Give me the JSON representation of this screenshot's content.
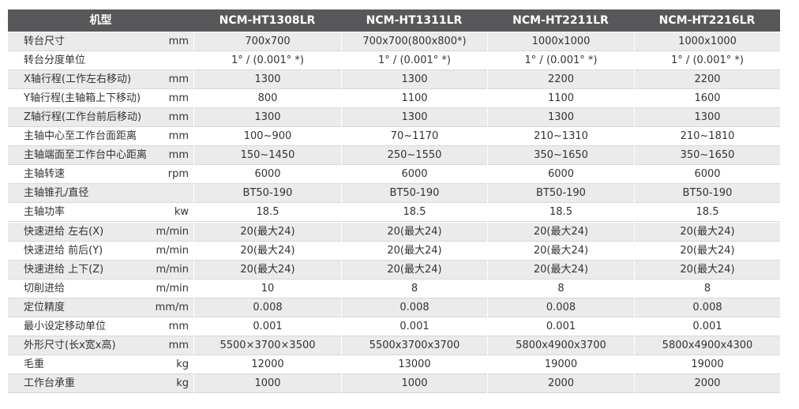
{
  "table": {
    "header": {
      "label": "机型",
      "models": [
        "NCM-HT1308LR",
        "NCM-HT1311LR",
        "NCM-HT2211LR",
        "NCM-HT2216LR"
      ]
    },
    "rows": [
      {
        "label": "转台尺寸",
        "unit": "mm",
        "values": [
          "700x700",
          "700x700(800x800*)",
          "1000x1000",
          "1000x1000"
        ]
      },
      {
        "label": "转台分度单位",
        "values": [
          "1° / (0.001° *)",
          "1° / (0.001° *)",
          "1° / (0.001° *)",
          "1° / (0.001° *)"
        ]
      },
      {
        "label": "X轴行程(工作左右移动)",
        "unit": "mm",
        "values": [
          "1300",
          "1300",
          "2200",
          "2200"
        ]
      },
      {
        "label": "Y轴行程(主轴箱上下移动)",
        "unit": "mm",
        "values": [
          "800",
          "1100",
          "1100",
          "1600"
        ]
      },
      {
        "label": "Z轴行程(工作台前后移动)",
        "unit": "mm",
        "values": [
          "1300",
          "1300",
          "1300",
          "1300"
        ]
      },
      {
        "label": "主轴中心至工作台面距离",
        "unit": "mm",
        "values": [
          "100~900",
          "70~1170",
          "210~1310",
          "210~1810"
        ]
      },
      {
        "label": "主轴端面至工作台中心距离",
        "unit": "mm",
        "values": [
          "150~1450",
          "250~1550",
          "350~1650",
          "350~1650"
        ]
      },
      {
        "label": "主轴转速",
        "unit": "rpm",
        "values": [
          "6000",
          "6000",
          "6000",
          "6000"
        ]
      },
      {
        "label": "主轴锥孔/直径",
        "values": [
          "BT50-190",
          "BT50-190",
          "BT50-190",
          "BT50-190"
        ]
      },
      {
        "label": "主轴功率",
        "unit": "kw",
        "values": [
          "18.5",
          "18.5",
          "18.5",
          "18.5"
        ]
      },
      {
        "label": "快速进给 左右(X)",
        "unit": "m/min",
        "values": [
          "20(最大24)",
          "20(最大24)",
          "20(最大24)",
          "20(最大24)"
        ]
      },
      {
        "label": "快速进给 前后(Y)",
        "unit": "m/min",
        "values": [
          "20(最大24)",
          "20(最大24)",
          "20(最大24)",
          "20(最大24)"
        ]
      },
      {
        "label": "快速进给 上下(Z)",
        "unit": "m/min",
        "values": [
          "20(最大24)",
          "20(最大24)",
          "20(最大24)",
          "20(最大24)"
        ]
      },
      {
        "label": "切削进给",
        "unit": "m/min",
        "values": [
          "10",
          "8",
          "8",
          "8"
        ]
      },
      {
        "label": "定位精度",
        "unit": "mm/m",
        "values": [
          "0.008",
          "0.008",
          "0.008",
          "0.008"
        ]
      },
      {
        "label": "最小设定移动单位",
        "unit": "mm",
        "values": [
          "0.001",
          "0.001",
          "0.001",
          "0.001"
        ]
      },
      {
        "label": "外形尺寸(长x宽x高)",
        "unit": "mm",
        "values": [
          "5500×3700×3500",
          "5500x3700x3700",
          "5800x4900x3700",
          "5800x4900x4300"
        ]
      },
      {
        "label": "毛重",
        "unit": "kg",
        "values": [
          "12000",
          "13000",
          "19000",
          "19000"
        ]
      },
      {
        "label": "工作台承重",
        "unit": "kg",
        "values": [
          "1000",
          "1000",
          "2000",
          "2000"
        ]
      }
    ]
  }
}
